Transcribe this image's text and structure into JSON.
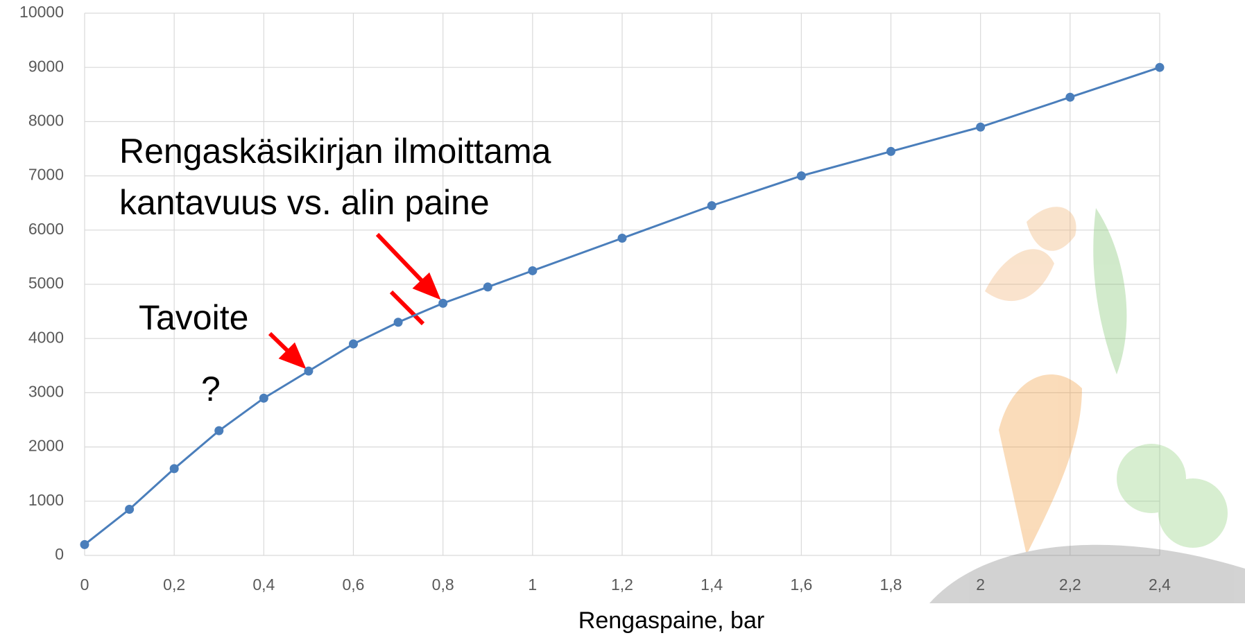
{
  "chart_data": {
    "type": "line",
    "x_label": "Rengaspaine, bar",
    "annotations": [
      "Rengaskäsikirjan ilmoittama",
      "kantavuus vs. alin paine",
      "Tavoite",
      "?"
    ],
    "x": [
      0,
      0.1,
      0.2,
      0.3,
      0.4,
      0.5,
      0.6,
      0.7,
      0.8,
      0.9,
      1,
      1.2,
      1.4,
      1.6,
      1.8,
      2,
      2.2,
      2.4
    ],
    "series": [
      {
        "color": "#4a7ebb",
        "values": [
          200,
          850,
          1600,
          2300,
          2900,
          3400,
          3900,
          4300,
          4650,
          4950,
          5250,
          5850,
          6450,
          7000,
          7450,
          7900,
          8450,
          9000
        ]
      }
    ],
    "xlim": [
      0,
      2.4
    ],
    "xticks": [
      0,
      {
        "value": 0.2,
        "label": "0,2"
      },
      {
        "value": 0.4,
        "label": "0,4"
      },
      {
        "value": 0.6,
        "label": "0,6"
      },
      {
        "value": 0.8,
        "label": "0,8"
      },
      1,
      {
        "value": 1.2,
        "label": "1,2"
      },
      {
        "value": 1.4,
        "label": "1,4"
      },
      {
        "value": 1.6,
        "label": "1,6"
      },
      {
        "value": 1.8,
        "label": "1,8"
      },
      2,
      {
        "value": 2.2,
        "label": "2,2"
      },
      {
        "value": 2.4,
        "label": "2,4"
      }
    ],
    "ylim": [
      0,
      10000
    ],
    "yticks": [
      0,
      1000,
      2000,
      3000,
      4000,
      5000,
      6000,
      7000,
      8000,
      9000,
      10000
    ],
    "grid": true
  }
}
